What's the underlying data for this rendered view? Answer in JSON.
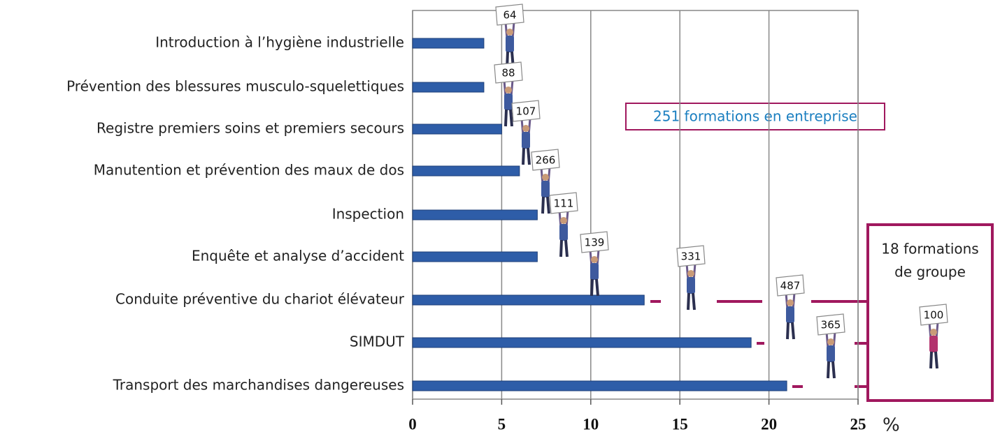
{
  "chart_data": {
    "type": "bar",
    "orientation": "horizontal",
    "categories": [
      "Introduction à l’hygiène industrielle",
      "Prévention des blessures musculo-squelettiques",
      "Registre premiers soins et premiers secours",
      "Manutention et prévention des maux de dos",
      "Inspection",
      "Enquête et analyse d’accident",
      "Conduite préventive du chariot élévateur",
      "SIMDUT",
      "Transport des marchandises dangereuses"
    ],
    "values": [
      4,
      4,
      5,
      6,
      7,
      7,
      13,
      19,
      21
    ],
    "participants": [
      64,
      88,
      107,
      266,
      111,
      139,
      331,
      487,
      365
    ],
    "color": "#2e5da8",
    "xlim": [
      0,
      25
    ],
    "xticks": [
      0,
      5,
      10,
      15,
      20,
      25
    ],
    "x_unit": "%",
    "grid": true,
    "company_box": "251 formations en entreprise",
    "group_box": {
      "lines": [
        "18 formations",
        "de groupe"
      ],
      "participants": 100
    }
  }
}
